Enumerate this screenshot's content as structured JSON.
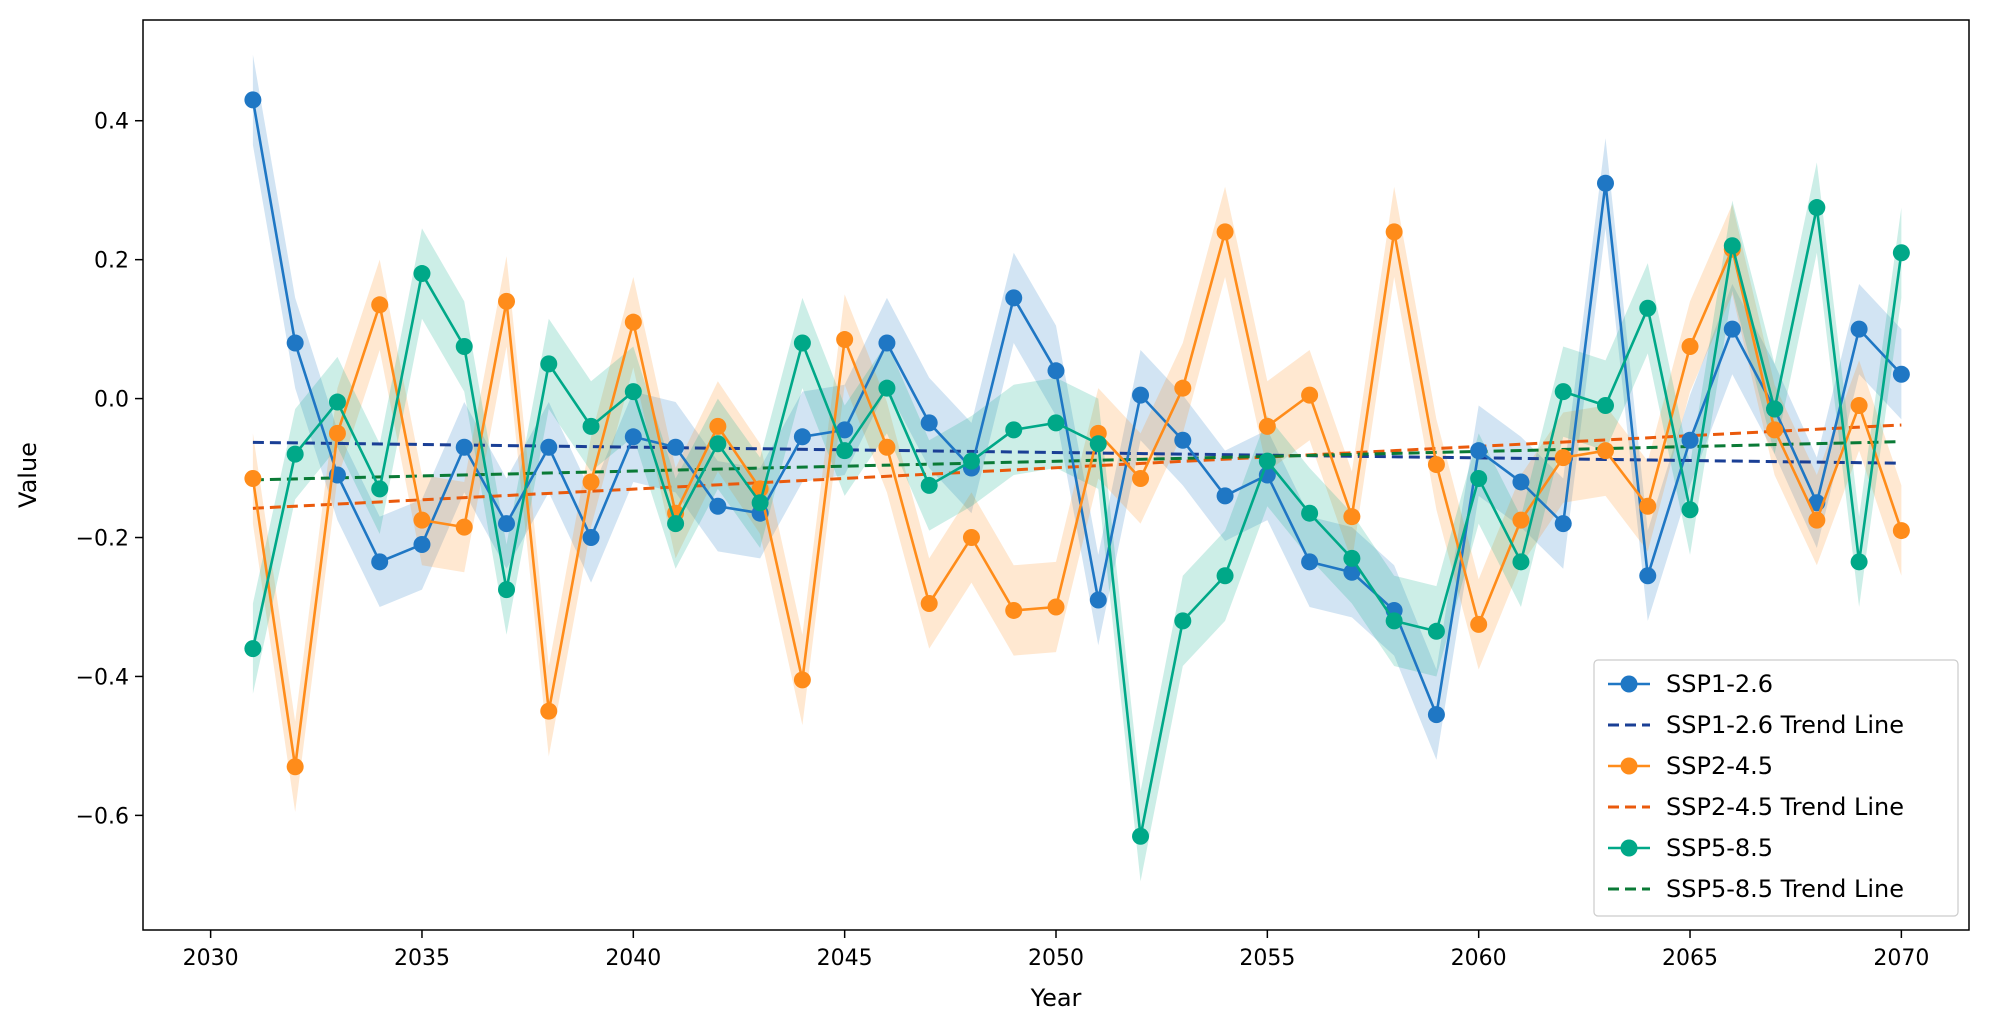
{
  "chart_data": {
    "type": "line",
    "title": "",
    "xlabel": "Year",
    "ylabel": "Value",
    "xlim": [
      2028.4,
      2071.6
    ],
    "ylim": [
      -0.765,
      0.545
    ],
    "xticks": [
      2030,
      2035,
      2040,
      2045,
      2050,
      2055,
      2060,
      2065,
      2070
    ],
    "xtick_labels": [
      "2030",
      "2035",
      "2040",
      "2045",
      "2050",
      "2055",
      "2060",
      "2065",
      "2070"
    ],
    "yticks": [
      -0.6,
      -0.4,
      -0.2,
      0.0,
      0.2,
      0.4
    ],
    "ytick_labels": [
      "−0.6",
      "−0.4",
      "−0.2",
      "0.0",
      "0.2",
      "0.4"
    ],
    "grid": false,
    "legend_position": "lower-right",
    "band_halfwidth": 0.065,
    "x": [
      2031,
      2032,
      2033,
      2034,
      2035,
      2036,
      2037,
      2038,
      2039,
      2040,
      2041,
      2042,
      2043,
      2044,
      2045,
      2046,
      2047,
      2048,
      2049,
      2050,
      2051,
      2052,
      2053,
      2054,
      2055,
      2056,
      2057,
      2058,
      2059,
      2060,
      2061,
      2062,
      2063,
      2064,
      2065,
      2066,
      2067,
      2068,
      2069,
      2070
    ],
    "series": [
      {
        "name": "SSP1-2.6",
        "color": "#1f77c4",
        "values": [
          0.43,
          0.08,
          -0.11,
          -0.235,
          -0.21,
          -0.07,
          -0.18,
          -0.07,
          -0.2,
          -0.055,
          -0.07,
          -0.155,
          -0.165,
          -0.055,
          -0.045,
          0.08,
          -0.035,
          -0.1,
          0.145,
          0.04,
          -0.29,
          0.005,
          -0.06,
          -0.14,
          -0.11,
          -0.235,
          -0.25,
          -0.305,
          -0.455,
          -0.075,
          -0.12,
          -0.18,
          0.31,
          -0.255,
          -0.06,
          0.1,
          -0.015,
          -0.15,
          0.1,
          0.035
        ]
      },
      {
        "name": "SSP2-4.5",
        "color": "#ff8c1a",
        "values": [
          -0.115,
          -0.53,
          -0.05,
          0.135,
          -0.175,
          -0.185,
          0.14,
          -0.45,
          -0.12,
          0.11,
          -0.165,
          -0.04,
          -0.13,
          -0.405,
          0.085,
          -0.07,
          -0.295,
          -0.2,
          -0.305,
          -0.3,
          -0.05,
          -0.115,
          0.015,
          0.24,
          -0.04,
          0.005,
          -0.17,
          0.24,
          -0.095,
          -0.325,
          -0.175,
          -0.085,
          -0.075,
          -0.155,
          0.075,
          0.215,
          -0.045,
          -0.175,
          -0.01,
          -0.19
        ]
      },
      {
        "name": "SSP5-8.5",
        "color": "#00a888",
        "values": [
          -0.36,
          -0.08,
          -0.005,
          -0.13,
          0.18,
          0.075,
          -0.275,
          0.05,
          -0.04,
          0.01,
          -0.18,
          -0.065,
          -0.15,
          0.08,
          -0.075,
          0.015,
          -0.125,
          -0.09,
          -0.045,
          -0.035,
          -0.065,
          -0.63,
          -0.32,
          -0.255,
          -0.09,
          -0.165,
          -0.23,
          -0.32,
          -0.335,
          -0.115,
          -0.235,
          0.01,
          -0.01,
          0.13,
          -0.16,
          0.22,
          -0.015,
          0.275,
          -0.235,
          0.21
        ]
      }
    ],
    "trend_lines": [
      {
        "name": "SSP1-2.6 Trend Line",
        "color": "#1a3f95",
        "start": [
          2031,
          -0.063
        ],
        "end": [
          2070,
          -0.093
        ]
      },
      {
        "name": "SSP2-4.5 Trend Line",
        "color": "#ea5a0c",
        "start": [
          2031,
          -0.158
        ],
        "end": [
          2070,
          -0.038
        ]
      },
      {
        "name": "SSP5-8.5 Trend Line",
        "color": "#0a7a36",
        "start": [
          2031,
          -0.117
        ],
        "end": [
          2070,
          -0.062
        ]
      }
    ],
    "legend": [
      {
        "label": "SSP1-2.6",
        "style": "marker-line",
        "color": "#1f77c4"
      },
      {
        "label": "SSP1-2.6 Trend Line",
        "style": "dashed",
        "color": "#1a3f95"
      },
      {
        "label": "SSP2-4.5",
        "style": "marker-line",
        "color": "#ff8c1a"
      },
      {
        "label": "SSP2-4.5 Trend Line",
        "style": "dashed",
        "color": "#ea5a0c"
      },
      {
        "label": "SSP5-8.5",
        "style": "marker-line",
        "color": "#00a888"
      },
      {
        "label": "SSP5-8.5 Trend Line",
        "style": "dashed",
        "color": "#0a7a36"
      }
    ]
  }
}
